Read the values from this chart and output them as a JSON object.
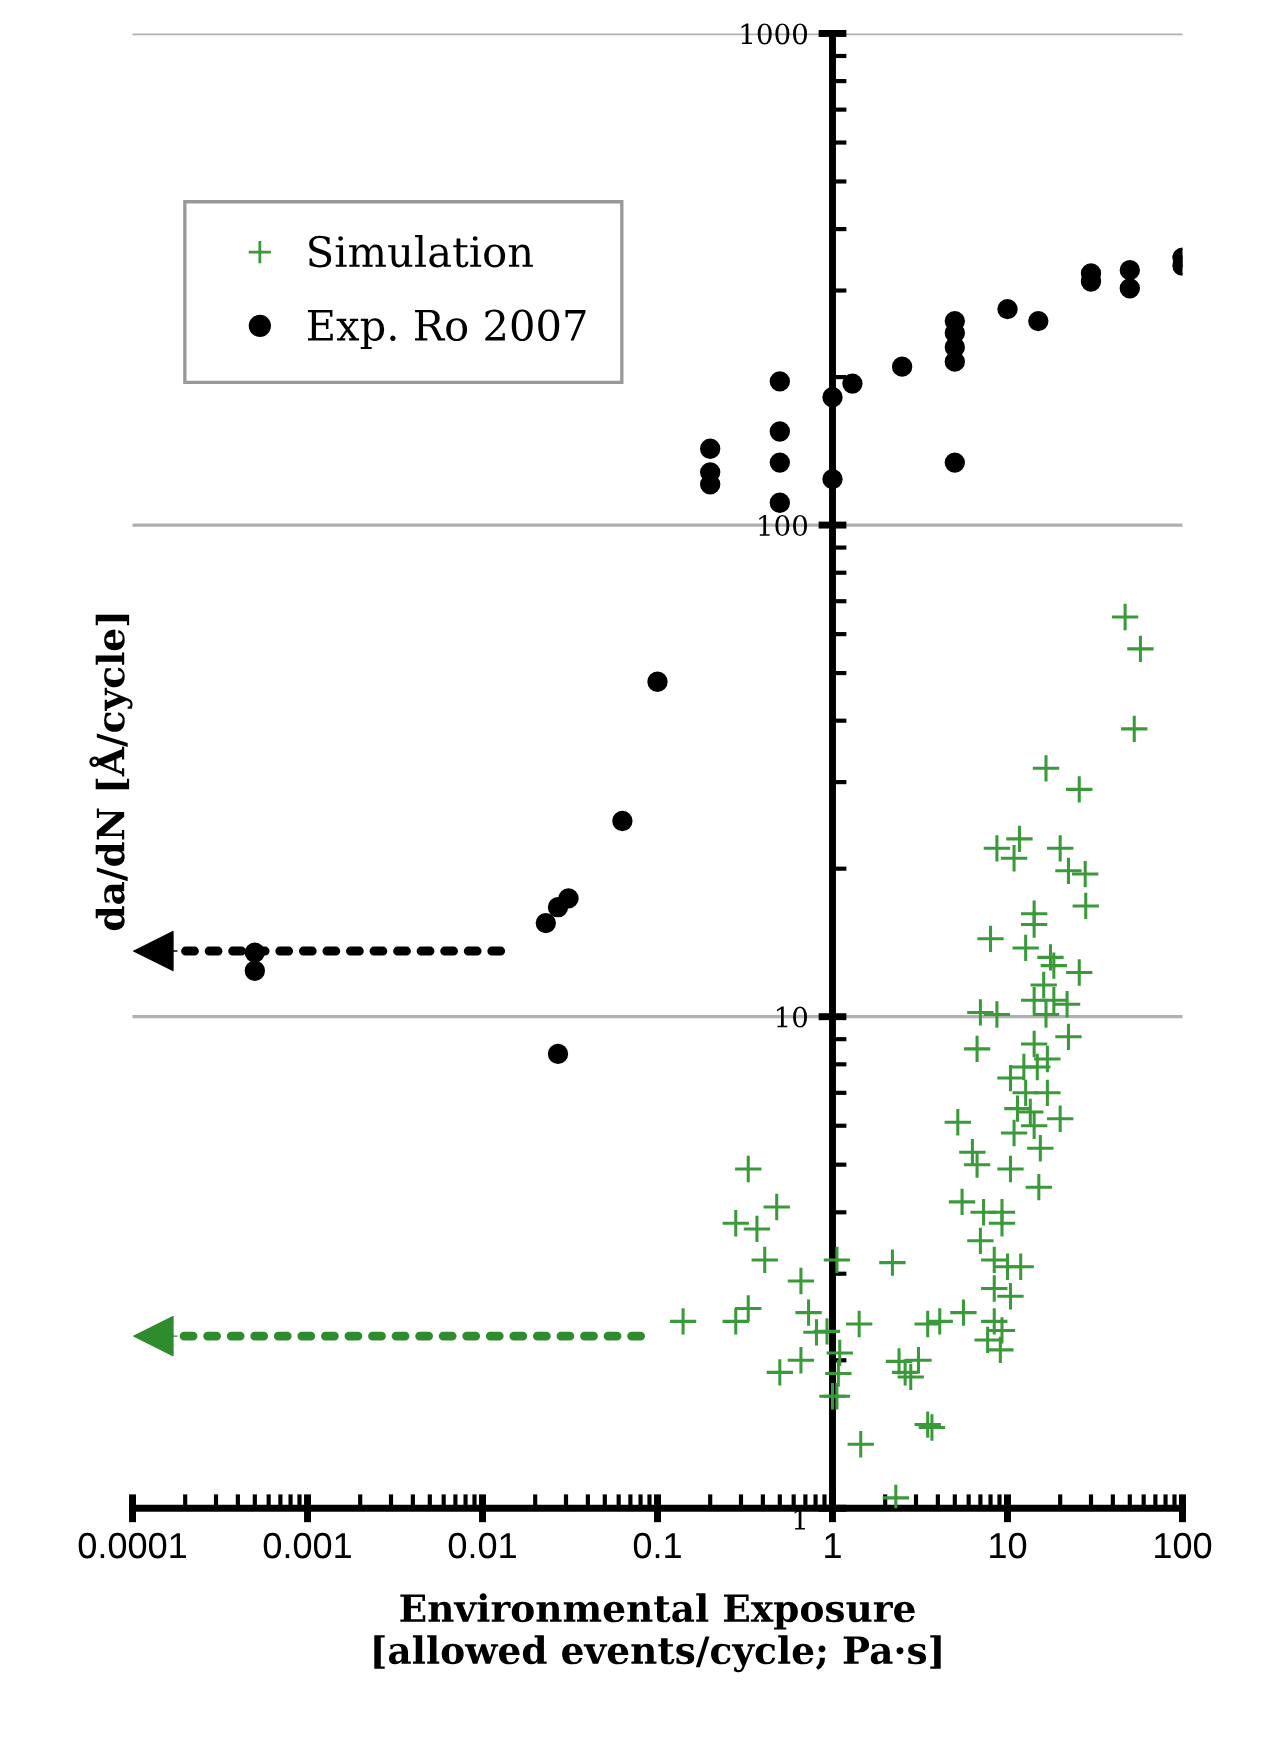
{
  "chart_data": {
    "type": "scatter",
    "xlabel": "Environmental Exposure\n[allowed events/cycle; Pa·s]",
    "ylabel": "da/dN [Å/cycle]",
    "log": "xy",
    "xlim": [
      0.0001,
      100
    ],
    "xticks": [
      0.0001,
      0.001,
      0.01,
      0.1,
      1,
      10,
      100
    ],
    "ylim": [
      1,
      1000
    ],
    "yticks": [
      1,
      10,
      100,
      1000
    ],
    "grid": "y",
    "legend": "top left",
    "series": [
      {
        "name": "Simulation",
        "marker": "cross",
        "color": "#3a9a3a",
        "x": [
          47,
          57.5,
          53,
          16.6,
          25.7,
          8.7,
          11.7,
          10.9,
          20,
          22.3,
          27.8,
          28,
          14.2,
          14.2,
          8,
          12.7,
          17.6,
          18.4,
          25.7,
          16.1,
          14.2,
          7.0,
          8.7,
          18.4,
          21.9,
          16.6,
          22.3,
          6.7,
          14.2,
          16.9,
          14.8,
          12.4,
          10.4,
          12.7,
          16.9,
          20,
          13.5,
          11.4,
          14.2,
          10.9,
          15.4,
          10.4,
          15.1,
          5.2,
          6.3,
          6.7,
          5.5,
          7.3,
          9.3,
          9.3,
          7.0,
          8.4,
          11.9,
          10,
          8.4,
          10.4,
          5.6,
          8.4,
          9.3,
          7.7,
          9.1,
          4.1,
          2.2,
          2.4,
          3.1,
          2.8,
          3.7,
          1.45,
          1.42,
          2.3,
          1.06,
          1.1,
          1.06,
          1.08,
          0.93,
          0.33,
          0.28,
          0.37,
          0.48,
          0.41,
          0.66,
          0.14,
          0.28,
          0.33,
          0.73,
          0.81,
          0.66,
          0.5,
          3.5,
          2.6,
          3.5,
          1.0
        ],
        "values": [
          65,
          56,
          38.5,
          32,
          29,
          22,
          23,
          21,
          22,
          19.8,
          19.5,
          16.8,
          16.2,
          15.4,
          14.4,
          13.8,
          13.2,
          12.7,
          12.3,
          11.6,
          10.8,
          10.2,
          10.1,
          10.8,
          10.6,
          10.1,
          9.1,
          8.6,
          8.8,
          8.2,
          7.9,
          7.9,
          7.5,
          7.0,
          7.0,
          6.2,
          6.4,
          6.5,
          6.0,
          5.8,
          5.4,
          4.9,
          4.5,
          6.1,
          5.3,
          5.0,
          4.2,
          4.0,
          4.0,
          3.8,
          3.5,
          3.2,
          3.1,
          3.1,
          2.8,
          2.7,
          2.5,
          2.4,
          2.3,
          2.2,
          2.1,
          2.4,
          3.16,
          1.99,
          2.0,
          1.85,
          1.46,
          1.35,
          2.37,
          1.05,
          3.2,
          2.07,
          1.69,
          1.88,
          2.29,
          4.9,
          3.8,
          3.7,
          4.1,
          3.2,
          2.9,
          2.4,
          2.4,
          2.55,
          2.5,
          2.28,
          2.0,
          1.89,
          2.37,
          1.89,
          1.48,
          1.69
        ]
      },
      {
        "name": "Exp. Ro 2007",
        "marker": "circle",
        "color": "#000000",
        "x": [
          0.2,
          0.2,
          0.2,
          0.5,
          0.5,
          0.5,
          0.5,
          1,
          1,
          1.3,
          2.5,
          5,
          5,
          5,
          5,
          5,
          10,
          15,
          30,
          30,
          50,
          50,
          100,
          100,
          0.0005,
          0.0005,
          0.027,
          0.023,
          0.027,
          0.031,
          0.063,
          0.1
        ],
        "values": [
          143,
          128,
          121,
          196,
          155,
          134,
          111,
          182,
          124,
          194,
          210,
          260,
          246,
          230,
          215,
          134,
          275,
          260,
          325,
          313,
          330,
          303,
          350,
          337,
          13.5,
          12.4,
          8.4,
          15.5,
          16.7,
          17.4,
          25,
          48
        ]
      }
    ]
  }
}
